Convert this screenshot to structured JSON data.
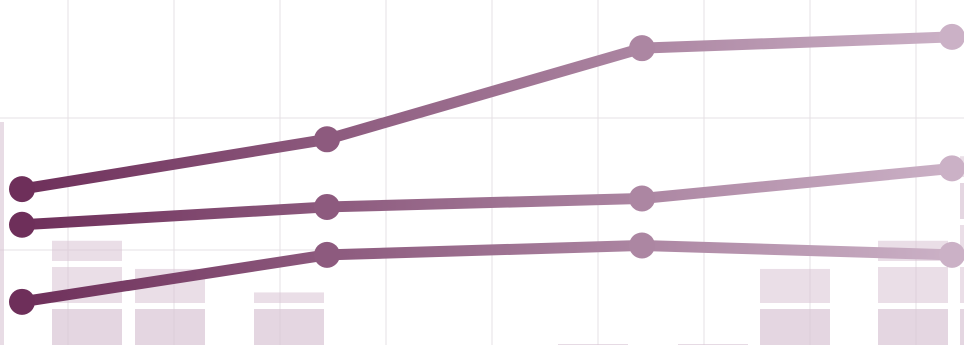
{
  "chart_data": {
    "type": "line",
    "title": "",
    "xlabel": "",
    "ylabel": "",
    "x": [
      1,
      2,
      3,
      4
    ],
    "series": [
      {
        "values": [
          23.0,
          28.3,
          38.0,
          39.2
        ]
      },
      {
        "values": [
          19.2,
          21.1,
          22.0,
          25.2
        ]
      },
      {
        "values": [
          11.0,
          16.0,
          17.0,
          16.0
        ]
      }
    ],
    "background_bars": {
      "type": "bar",
      "values": [
        17.5,
        14.5,
        12.0,
        6.5,
        6.5,
        14.5,
        17.5,
        26.5
      ]
    },
    "colors": {
      "line_dark": "#6e2f5a",
      "line_light": "#c9afc4",
      "bar_fill": "#d9c5d4",
      "grid": "#e6e0e4"
    },
    "ylim": [
      8,
      41
    ],
    "grid": true
  }
}
